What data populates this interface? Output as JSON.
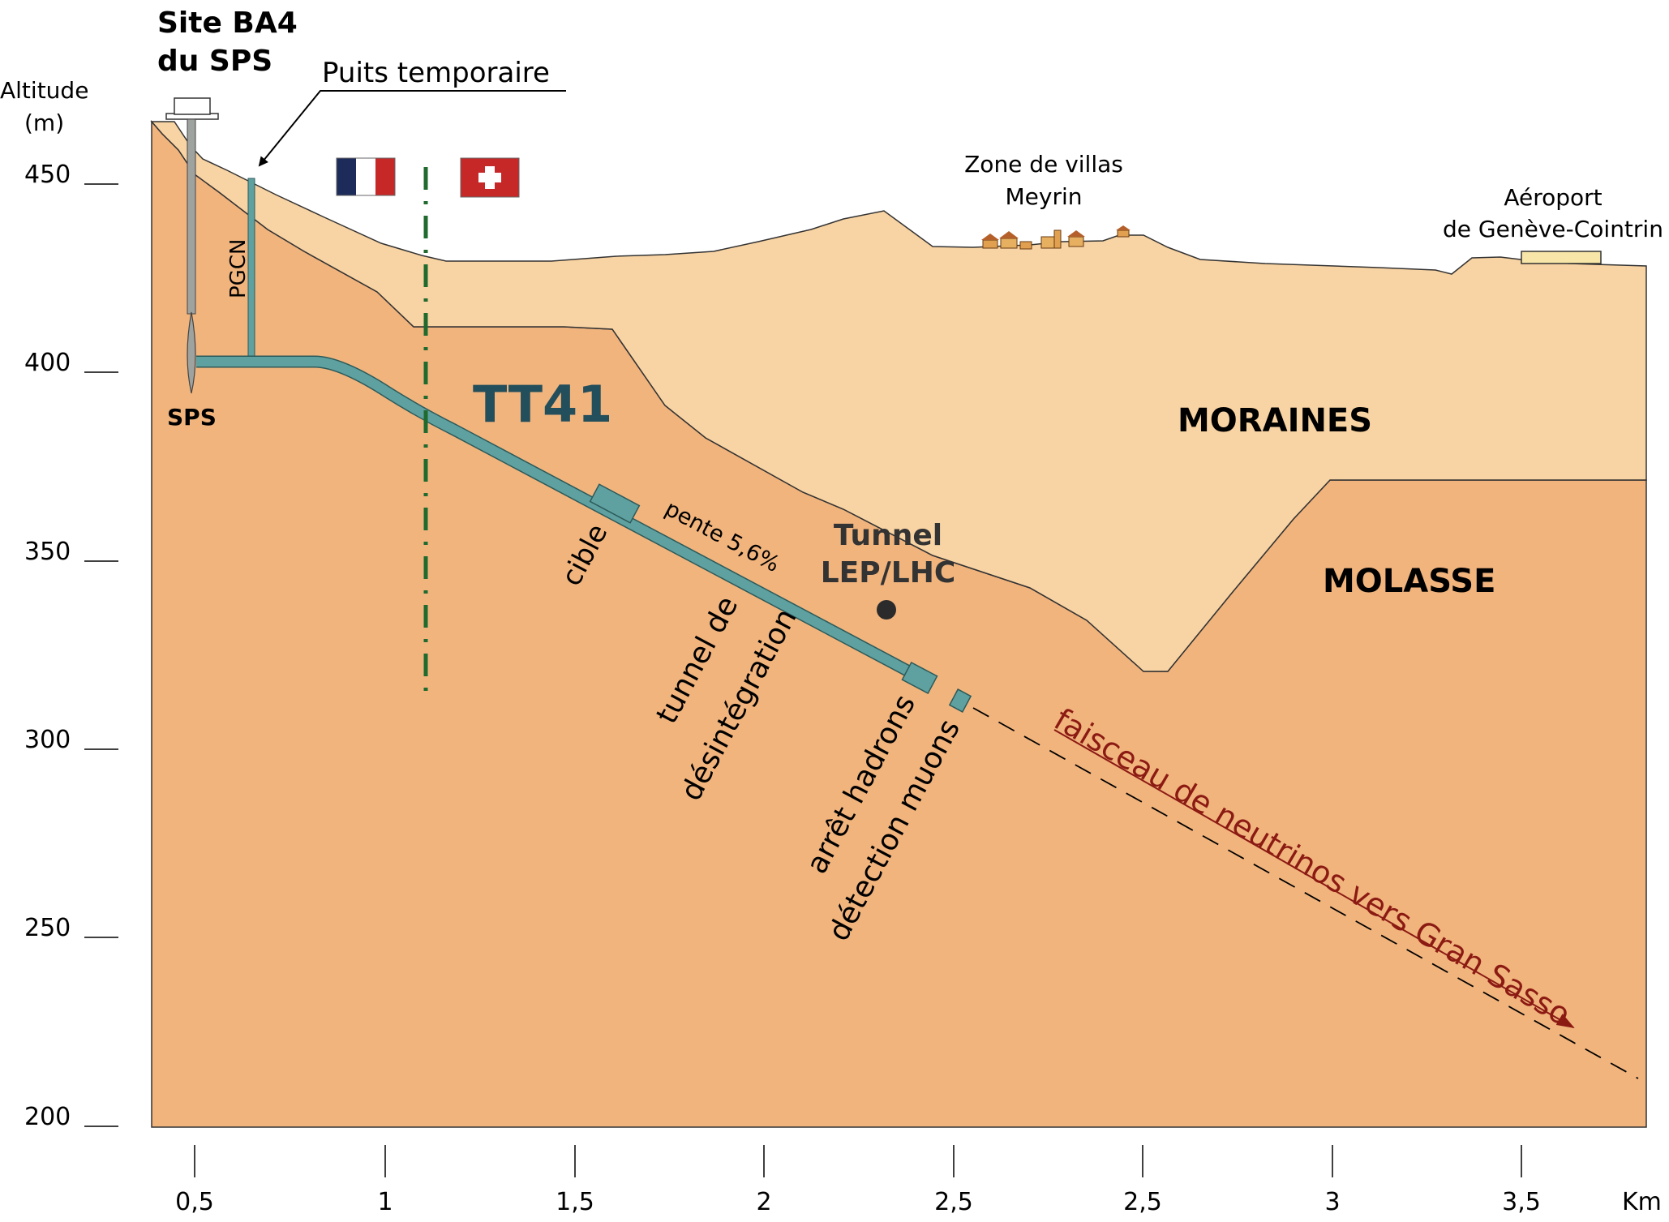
{
  "site": {
    "line1": "Site BA4",
    "line2": "du SPS"
  },
  "temp_shaft": "Puits temporaire",
  "altitude_axis": {
    "line1": "Altitude",
    "line2": "(m)"
  },
  "y_ticks": [
    "450",
    "400",
    "350",
    "300",
    "250",
    "200"
  ],
  "x_ticks": [
    "0,5",
    "1",
    "1,5",
    "2",
    "2,5",
    "2,5",
    "3",
    "3,5"
  ],
  "x_unit": "Km",
  "villas": {
    "line1": "Zone de villas",
    "line2": "Meyrin"
  },
  "airport": {
    "line1": "Aéroport",
    "line2": "de Genève-Cointrin"
  },
  "pgcn": "PGCN",
  "sps": "SPS",
  "tt41": "TT41",
  "moraines": "MORAINES",
  "molasse": "MOLASSE",
  "lep": {
    "line1": "Tunnel",
    "line2": "LEP/LHC"
  },
  "cible": "cible",
  "pente": "pente 5,6%",
  "decay": {
    "line1": "tunnel de",
    "line2": "désintégration"
  },
  "hadrons": {
    "line1": "arrêt hadrons",
    "line2": "détection muons"
  },
  "beam": "faisceau de neutrinos vers Gran Sasso",
  "colors": {
    "moraines": "#f8d3a3",
    "molasse": "#f1b47d",
    "tunnel": "#5fa1a0",
    "tt41": "#234e5c",
    "border_line": "#1f6a2e",
    "beam_text": "#8b1a13",
    "flag_blue": "#1c2b5a",
    "flag_red": "#c62828"
  }
}
